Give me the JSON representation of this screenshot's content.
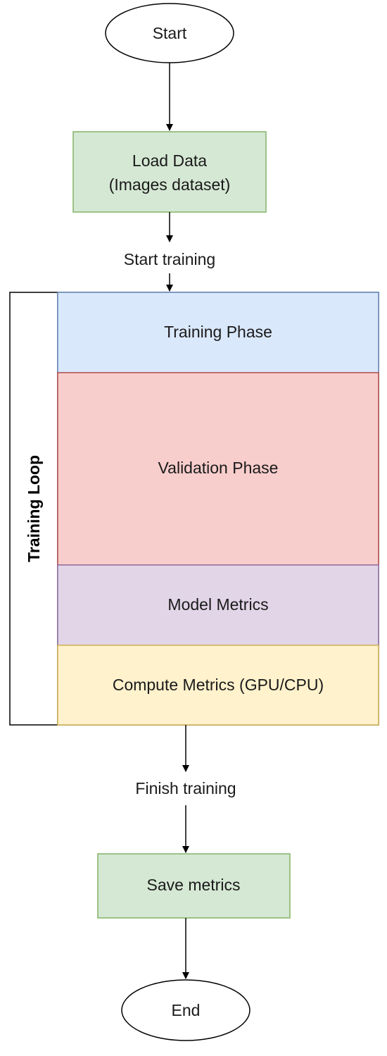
{
  "nodes": {
    "start": {
      "label": "Start"
    },
    "load_data": {
      "line1": "Load Data",
      "line2": "(Images dataset)",
      "fill": "#d5e8d4",
      "stroke": "#82b366"
    },
    "start_training": {
      "label": "Start training"
    },
    "training_loop": {
      "title": "Training Loop",
      "phases": [
        {
          "label": "Training Phase",
          "fill": "#dae8fc",
          "stroke": "#6c8ebf"
        },
        {
          "label": "Validation Phase",
          "fill": "#f8cecc",
          "stroke": "#b85450"
        },
        {
          "label": "Model Metrics",
          "fill": "#e1d5e7",
          "stroke": "#9673a6"
        },
        {
          "label": "Compute Metrics (GPU/CPU)",
          "fill": "#fff2cc",
          "stroke": "#d6b656"
        }
      ]
    },
    "finish_training": {
      "label": "Finish training"
    },
    "save_metrics": {
      "label": "Save metrics",
      "fill": "#d5e8d4",
      "stroke": "#82b366"
    },
    "end": {
      "label": "End"
    }
  }
}
